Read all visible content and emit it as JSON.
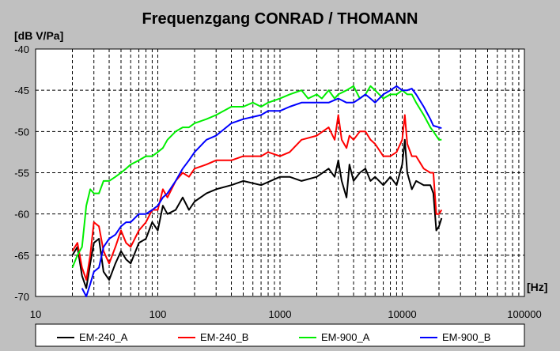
{
  "chart_data": {
    "type": "line",
    "title": "Frequenzgang CONRAD / THOMANN",
    "ylabel": "[dB V/Pa]",
    "xlabel": "[Hz]",
    "x_scale": "log",
    "xlim": [
      10,
      100000
    ],
    "ylim": [
      -70,
      -40
    ],
    "x_ticks": [
      10,
      100,
      1000,
      10000,
      100000
    ],
    "x_tick_labels": [
      "10",
      "100",
      "1000",
      "10000",
      "100000"
    ],
    "y_ticks": [
      -40,
      -45,
      -50,
      -55,
      -60,
      -65,
      -70
    ],
    "y_tick_labels": [
      "-40",
      "-45",
      "-50",
      "-55",
      "-60",
      "-65",
      "-70"
    ],
    "grid": true,
    "legend_position": "bottom",
    "series": [
      {
        "name": "EM-240_A",
        "color": "#000000",
        "points": [
          [
            20,
            -65
          ],
          [
            22,
            -64
          ],
          [
            24,
            -67.5
          ],
          [
            26,
            -69
          ],
          [
            28,
            -66
          ],
          [
            30,
            -63.5
          ],
          [
            33,
            -63
          ],
          [
            36,
            -67
          ],
          [
            40,
            -68
          ],
          [
            45,
            -66
          ],
          [
            50,
            -64.5
          ],
          [
            55,
            -65.5
          ],
          [
            60,
            -66
          ],
          [
            70,
            -63.5
          ],
          [
            80,
            -63
          ],
          [
            90,
            -61
          ],
          [
            100,
            -62
          ],
          [
            110,
            -59
          ],
          [
            120,
            -60
          ],
          [
            140,
            -59.5
          ],
          [
            160,
            -58
          ],
          [
            180,
            -59.5
          ],
          [
            200,
            -58.5
          ],
          [
            250,
            -57.5
          ],
          [
            300,
            -57
          ],
          [
            400,
            -56.5
          ],
          [
            500,
            -56
          ],
          [
            700,
            -56.5
          ],
          [
            1000,
            -55.5
          ],
          [
            1200,
            -55.5
          ],
          [
            1500,
            -56
          ],
          [
            2000,
            -55.5
          ],
          [
            2500,
            -54.5
          ],
          [
            2800,
            -55.5
          ],
          [
            3000,
            -53.5
          ],
          [
            3200,
            -56
          ],
          [
            3500,
            -58
          ],
          [
            3700,
            -54
          ],
          [
            4000,
            -56
          ],
          [
            4500,
            -55
          ],
          [
            5000,
            -54.5
          ],
          [
            5500,
            -56
          ],
          [
            6000,
            -55.5
          ],
          [
            7000,
            -56.5
          ],
          [
            8000,
            -55.5
          ],
          [
            9000,
            -56.5
          ],
          [
            10000,
            -54
          ],
          [
            10500,
            -51
          ],
          [
            11000,
            -55
          ],
          [
            12000,
            -57
          ],
          [
            13000,
            -56
          ],
          [
            15000,
            -56.5
          ],
          [
            17000,
            -56.5
          ],
          [
            18000,
            -57.5
          ],
          [
            19000,
            -62
          ],
          [
            20000,
            -61.5
          ],
          [
            21000,
            -60.5
          ]
        ]
      },
      {
        "name": "EM-240_B",
        "color": "#ff0000",
        "points": [
          [
            20,
            -64.5
          ],
          [
            22,
            -63.5
          ],
          [
            24,
            -66.5
          ],
          [
            26,
            -68
          ],
          [
            28,
            -65
          ],
          [
            30,
            -61
          ],
          [
            33,
            -61.5
          ],
          [
            36,
            -64.5
          ],
          [
            40,
            -66
          ],
          [
            45,
            -64
          ],
          [
            50,
            -62
          ],
          [
            55,
            -63.5
          ],
          [
            60,
            -64
          ],
          [
            70,
            -62
          ],
          [
            80,
            -61
          ],
          [
            90,
            -59.5
          ],
          [
            100,
            -59.5
          ],
          [
            110,
            -57
          ],
          [
            120,
            -58
          ],
          [
            140,
            -56
          ],
          [
            160,
            -55
          ],
          [
            180,
            -55.5
          ],
          [
            200,
            -54.5
          ],
          [
            250,
            -54
          ],
          [
            300,
            -53.5
          ],
          [
            400,
            -53.5
          ],
          [
            500,
            -53
          ],
          [
            700,
            -53
          ],
          [
            800,
            -52.5
          ],
          [
            1000,
            -53
          ],
          [
            1200,
            -52.5
          ],
          [
            1500,
            -51
          ],
          [
            2000,
            -50.5
          ],
          [
            2500,
            -49.5
          ],
          [
            2800,
            -51
          ],
          [
            3000,
            -48
          ],
          [
            3200,
            -51
          ],
          [
            3500,
            -52
          ],
          [
            3700,
            -50.5
          ],
          [
            4000,
            -51
          ],
          [
            4500,
            -50
          ],
          [
            5000,
            -50
          ],
          [
            5500,
            -51
          ],
          [
            6000,
            -51.5
          ],
          [
            7000,
            -53
          ],
          [
            8000,
            -53
          ],
          [
            9000,
            -52.5
          ],
          [
            10000,
            -51
          ],
          [
            10500,
            -48
          ],
          [
            11000,
            -51.5
          ],
          [
            12000,
            -53
          ],
          [
            13000,
            -53
          ],
          [
            15000,
            -54.5
          ],
          [
            17000,
            -55
          ],
          [
            18000,
            -55
          ],
          [
            19000,
            -60
          ],
          [
            20000,
            -60
          ],
          [
            21000,
            -59.5
          ]
        ]
      },
      {
        "name": "EM-900_A",
        "color": "#00ee00",
        "points": [
          [
            20,
            -66.5
          ],
          [
            22,
            -65
          ],
          [
            24,
            -64
          ],
          [
            26,
            -59
          ],
          [
            28,
            -57
          ],
          [
            30,
            -57.5
          ],
          [
            33,
            -57.5
          ],
          [
            36,
            -56
          ],
          [
            40,
            -56
          ],
          [
            45,
            -55.5
          ],
          [
            50,
            -55
          ],
          [
            55,
            -54.5
          ],
          [
            60,
            -54
          ],
          [
            70,
            -53.5
          ],
          [
            80,
            -53
          ],
          [
            90,
            -53
          ],
          [
            100,
            -52.5
          ],
          [
            110,
            -52
          ],
          [
            120,
            -51
          ],
          [
            140,
            -50
          ],
          [
            160,
            -49.5
          ],
          [
            180,
            -49.5
          ],
          [
            200,
            -49
          ],
          [
            250,
            -48.5
          ],
          [
            300,
            -48
          ],
          [
            400,
            -47
          ],
          [
            500,
            -47
          ],
          [
            600,
            -46.5
          ],
          [
            700,
            -47
          ],
          [
            800,
            -46.5
          ],
          [
            1000,
            -46
          ],
          [
            1200,
            -45.5
          ],
          [
            1500,
            -45
          ],
          [
            1700,
            -46
          ],
          [
            2000,
            -45.5
          ],
          [
            2200,
            -46
          ],
          [
            2500,
            -45
          ],
          [
            2800,
            -46
          ],
          [
            3000,
            -45.5
          ],
          [
            3500,
            -45
          ],
          [
            4000,
            -44.5
          ],
          [
            4500,
            -46
          ],
          [
            5000,
            -45.5
          ],
          [
            5500,
            -44.5
          ],
          [
            6000,
            -45
          ],
          [
            7000,
            -46
          ],
          [
            8000,
            -45.5
          ],
          [
            9000,
            -45.5
          ],
          [
            10000,
            -45
          ],
          [
            11000,
            -45.5
          ],
          [
            12000,
            -45.5
          ],
          [
            13000,
            -46.5
          ],
          [
            15000,
            -48
          ],
          [
            17000,
            -49.5
          ],
          [
            18000,
            -50
          ],
          [
            20000,
            -51
          ],
          [
            21000,
            -51
          ]
        ]
      },
      {
        "name": "EM-900_B",
        "color": "#0000ff",
        "points": [
          [
            24,
            -69
          ],
          [
            26,
            -70
          ],
          [
            28,
            -68.5
          ],
          [
            30,
            -67
          ],
          [
            33,
            -66.5
          ],
          [
            36,
            -64
          ],
          [
            40,
            -63
          ],
          [
            45,
            -62.5
          ],
          [
            50,
            -61.5
          ],
          [
            55,
            -61
          ],
          [
            60,
            -61
          ],
          [
            70,
            -60
          ],
          [
            80,
            -60
          ],
          [
            90,
            -59.5
          ],
          [
            100,
            -59
          ],
          [
            110,
            -58
          ],
          [
            120,
            -57.5
          ],
          [
            140,
            -56
          ],
          [
            160,
            -54.5
          ],
          [
            180,
            -53.5
          ],
          [
            200,
            -52.5
          ],
          [
            250,
            -51
          ],
          [
            300,
            -50.5
          ],
          [
            400,
            -49
          ],
          [
            500,
            -48.5
          ],
          [
            700,
            -48
          ],
          [
            800,
            -47.5
          ],
          [
            1000,
            -47.5
          ],
          [
            1200,
            -47
          ],
          [
            1500,
            -46.5
          ],
          [
            2000,
            -46.5
          ],
          [
            2500,
            -46.5
          ],
          [
            3000,
            -46
          ],
          [
            3500,
            -46.5
          ],
          [
            4000,
            -46.5
          ],
          [
            4500,
            -46
          ],
          [
            5000,
            -45.5
          ],
          [
            5500,
            -46
          ],
          [
            6000,
            -46.5
          ],
          [
            7000,
            -45.5
          ],
          [
            8000,
            -45
          ],
          [
            9000,
            -44.5
          ],
          [
            10000,
            -45
          ],
          [
            11000,
            -45
          ],
          [
            12000,
            -44.8
          ],
          [
            13000,
            -45.5
          ],
          [
            15000,
            -47
          ],
          [
            17000,
            -48.5
          ],
          [
            18000,
            -49.3
          ],
          [
            20000,
            -49.5
          ],
          [
            21000,
            -49.6
          ]
        ]
      }
    ]
  }
}
